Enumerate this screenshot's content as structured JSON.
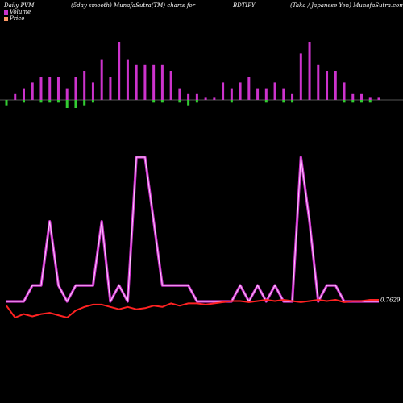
{
  "header": {
    "left": "Daily PVM",
    "mid_left": "(5day smooth) MunafaSutra(TM) charts for",
    "symbol": "BDTIPY",
    "right": "(Taka  /  Japanese   Yen) MunafaSutra.com"
  },
  "legend": [
    {
      "label": "Volume",
      "color": "#cc33cc"
    },
    {
      "label": "Price",
      "color": "#ff9966"
    }
  ],
  "colors": {
    "background": "#000000",
    "volume_up": "#cc33cc",
    "volume_down": "#33cc33",
    "pvm_line_outer": "#cc33cc",
    "pvm_line_inner": "#ffccff",
    "price_line": "#ff2222",
    "baseline": "#aaaaaa"
  },
  "chart_data": {
    "type": "bar",
    "price_label": "0.7629",
    "volume_up": [
      0,
      2,
      4,
      6,
      8,
      8,
      8,
      4,
      8,
      10,
      6,
      14,
      8,
      20,
      14,
      12,
      12,
      12,
      12,
      10,
      4,
      2,
      2,
      1,
      1,
      6,
      4,
      6,
      8,
      4,
      4,
      6,
      4,
      2,
      16,
      20,
      12,
      10,
      10,
      6,
      2,
      2,
      1,
      1
    ],
    "volume_down": [
      2,
      0,
      1,
      0,
      1,
      1,
      1,
      3,
      3,
      2,
      1,
      0,
      0,
      0,
      0,
      0,
      0,
      1,
      1,
      0,
      1,
      2,
      1,
      0,
      0,
      0,
      1,
      0,
      0,
      0,
      1,
      0,
      1,
      1,
      0,
      0,
      0,
      0,
      0,
      1,
      1,
      1,
      1,
      0
    ],
    "pvm": [
      1,
      1,
      1,
      2,
      2,
      6,
      2,
      1,
      2,
      2,
      2,
      6,
      1,
      2,
      1,
      10,
      10,
      6,
      2,
      2,
      2,
      2,
      1,
      1,
      1,
      1,
      1,
      2,
      1,
      2,
      1,
      2,
      1,
      1,
      10,
      6,
      1,
      2,
      2,
      1,
      1,
      1,
      1,
      1
    ],
    "price": [
      0.758,
      0.748,
      0.751,
      0.749,
      0.751,
      0.752,
      0.75,
      0.748,
      0.754,
      0.757,
      0.759,
      0.759,
      0.757,
      0.755,
      0.757,
      0.755,
      0.756,
      0.758,
      0.757,
      0.76,
      0.758,
      0.76,
      0.76,
      0.759,
      0.76,
      0.761,
      0.762,
      0.762,
      0.761,
      0.762,
      0.763,
      0.762,
      0.763,
      0.762,
      0.761,
      0.762,
      0.763,
      0.762,
      0.763,
      0.761,
      0.762,
      0.762,
      0.763,
      0.763
    ]
  }
}
